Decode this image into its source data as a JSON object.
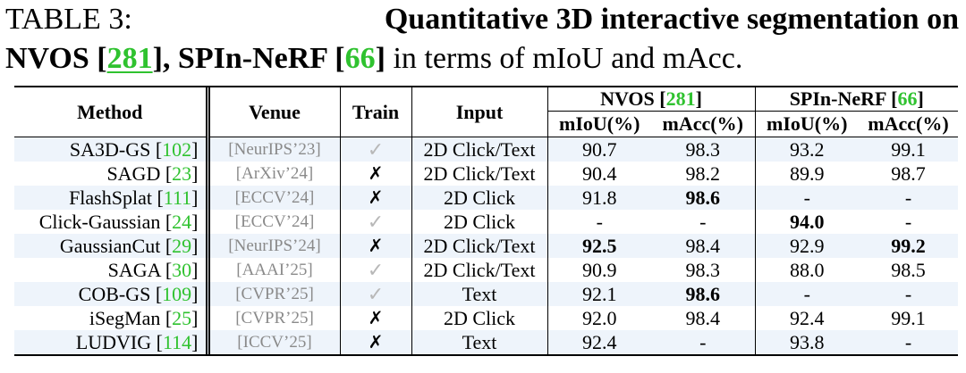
{
  "caption": {
    "label": "TABLE 3:",
    "bold_part1": "Quantitative 3D interactive segmentation on",
    "bold_part2_a": "NVOS [",
    "cite1": "281",
    "bold_part2_b": "], SPIn-NeRF [",
    "cite2": "66",
    "bold_part2_c": "]",
    "rest": " in terms of mIoU and mAcc."
  },
  "header": {
    "method": "Method",
    "venue": "Venue",
    "train": "Train",
    "input": "Input",
    "group1_name": "NVOS [",
    "group1_cite": "281",
    "group1_close": "]",
    "group2_name": "SPIn-NeRF [",
    "group2_cite": "66",
    "group2_close": "]",
    "miou": "mIoU(%)",
    "macc": "mAcc(%)"
  },
  "rows": [
    {
      "method": "SA3D-GS [",
      "cite": "102",
      "venue": "[NeurIPS’23]",
      "train": "✓",
      "input": "2D Click/Text",
      "nvos_miou": "90.7",
      "nvos_macc": "98.3",
      "spin_miou": "93.2",
      "spin_macc": "99.1"
    },
    {
      "method": "SAGD [",
      "cite": "23",
      "venue": "[ArXiv’24]",
      "train": "✗",
      "input": "2D Click/Text",
      "nvos_miou": "90.4",
      "nvos_macc": "98.2",
      "spin_miou": "89.9",
      "spin_macc": "98.7"
    },
    {
      "method": "FlashSplat [",
      "cite": "111",
      "venue": "[ECCV’24]",
      "train": "✗",
      "input": "2D Click",
      "nvos_miou": "91.8",
      "nvos_macc": "98.6",
      "spin_miou": "-",
      "spin_macc": "-"
    },
    {
      "method": "Click-Gaussian [",
      "cite": "24",
      "venue": "[ECCV’24]",
      "train": "✓",
      "input": "2D Click",
      "nvos_miou": "-",
      "nvos_macc": "-",
      "spin_miou": "94.0",
      "spin_macc": "-"
    },
    {
      "method": "GaussianCut [",
      "cite": "29",
      "venue": "[NeurIPS’24]",
      "train": "✗",
      "input": "2D Click/Text",
      "nvos_miou": "92.5",
      "nvos_macc": "98.4",
      "spin_miou": "92.9",
      "spin_macc": "99.2"
    },
    {
      "method": "SAGA [",
      "cite": "30",
      "venue": "[AAAI’25]",
      "train": "✓",
      "input": "2D Click/Text",
      "nvos_miou": "90.9",
      "nvos_macc": "98.3",
      "spin_miou": "88.0",
      "spin_macc": "98.5"
    },
    {
      "method": "COB-GS [",
      "cite": "109",
      "venue": "[CVPR’25]",
      "train": "✓",
      "input": "Text",
      "nvos_miou": "92.1",
      "nvos_macc": "98.6",
      "spin_miou": "-",
      "spin_macc": "-"
    },
    {
      "method": "iSegMan [",
      "cite": "25",
      "venue": "[CVPR’25]",
      "train": "✗",
      "input": "2D Click",
      "nvos_miou": "92.0",
      "nvos_macc": "98.4",
      "spin_miou": "92.4",
      "spin_macc": "99.1"
    },
    {
      "method": "LUDVIG [",
      "cite": "114",
      "venue": "[ICCV’25]",
      "train": "✗",
      "input": "Text",
      "nvos_miou": "92.4",
      "nvos_macc": "-",
      "spin_miou": "93.8",
      "spin_macc": "-"
    }
  ],
  "close_bracket": "]",
  "colors": {
    "citation": "#2fc22f",
    "row_stripe": "#eef4fb",
    "venue_gray": "#8a8a8a",
    "check_gray": "#b8b8b8"
  }
}
